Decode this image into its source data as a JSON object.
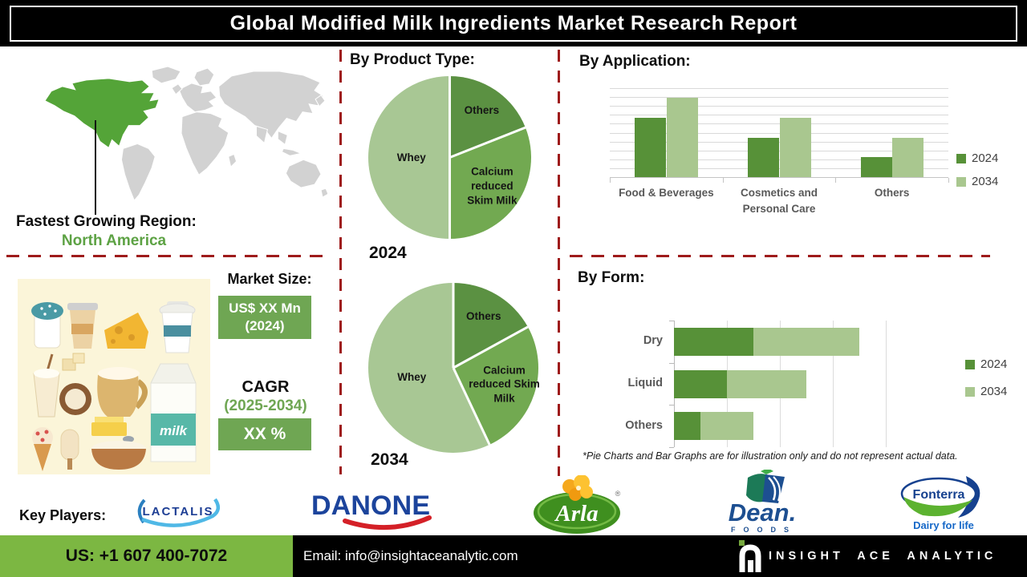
{
  "header": {
    "title": "Global Modified Milk Ingredients Market Research Report"
  },
  "region": {
    "heading": "Fastest Growing Region:",
    "value": "North America"
  },
  "market_size": {
    "heading": "Market Size:",
    "value": "US$ XX Mn",
    "value_year": "(2024)",
    "cagr_label": "CAGR",
    "cagr_period": "(2025-2034)",
    "cagr_value": "XX %"
  },
  "illustration": {
    "milk_label": "milk"
  },
  "disclaimer": "*Pie Charts and Bar Graphs are for illustration only and do not represent actual data.",
  "key_players": {
    "heading": "Key Players:",
    "lactalis": "LACTALIS",
    "danone": "DANONE",
    "arla": "Arla",
    "arla_reg": "®",
    "dean": "Dean.",
    "dean_sub": "FOODS",
    "fonterra": "Fonterra",
    "fonterra_tagline": "Dairy for life"
  },
  "footer": {
    "phone": "US: +1 607 400-7072",
    "email": "Email: info@insightaceanalytic.com",
    "company": "INSIGHT ACE ANALYTIC"
  },
  "colors": {
    "dark_green": "#579138",
    "mid_green": "#72a951",
    "light_green": "#a8c794",
    "dashed_red": "#9e1b1b",
    "map_green": "#54a438",
    "map_gray": "#d2d2d2",
    "footer_green": "#7cb742",
    "na_text_green": "#5da244",
    "box_green": "#6fa653",
    "title_bg": "#000000"
  },
  "chart_data": [
    {
      "type": "pie",
      "title": "By Product Type:",
      "year_label": "2024",
      "legend_position": "none",
      "slices": [
        {
          "label": "Others",
          "value": 19,
          "color": "#5b9142",
          "label_r": 0.7
        },
        {
          "label": "Calcium reduced Skim Milk",
          "value": 31,
          "color": "#72a951",
          "label_r": 0.63,
          "label_width": 70
        },
        {
          "label": "Whey",
          "value": 50,
          "color": "#a8c794",
          "label_r": 0.47
        }
      ]
    },
    {
      "type": "pie",
      "title": "By Product Type:",
      "year_label": "2034",
      "legend_position": "none",
      "slices": [
        {
          "label": "Others",
          "value": 17,
          "color": "#5b9142",
          "label_r": 0.7
        },
        {
          "label": "Calcium reduced Skim Milk",
          "value": 26,
          "color": "#72a951",
          "label_r": 0.63,
          "label_width": 94
        },
        {
          "label": "Whey",
          "value": 57,
          "color": "#a8c794",
          "label_r": 0.5
        }
      ]
    },
    {
      "type": "bar",
      "title": "By Application:",
      "categories": [
        "Food & Beverages",
        "Cosmetics and Personal Care",
        "Others"
      ],
      "series": [
        {
          "name": "2024",
          "color": "#579138",
          "values": [
            3,
            2,
            1
          ]
        },
        {
          "name": "2034",
          "color": "#a9c78f",
          "values": [
            4,
            3,
            2
          ]
        }
      ],
      "ylim": [
        0,
        4.5
      ],
      "grid": true,
      "legend_position": "right"
    },
    {
      "type": "hbar-stacked",
      "title": "By Form:",
      "categories": [
        "Dry",
        "Liquid",
        "Others"
      ],
      "series": [
        {
          "name": "2024",
          "color": "#579138",
          "values": [
            1.5,
            1,
            0.5
          ]
        },
        {
          "name": "2034",
          "color": "#a9c78f",
          "values": [
            2,
            1.5,
            1
          ]
        }
      ],
      "xlim": [
        0,
        4
      ],
      "grid": true,
      "legend_position": "right"
    }
  ]
}
